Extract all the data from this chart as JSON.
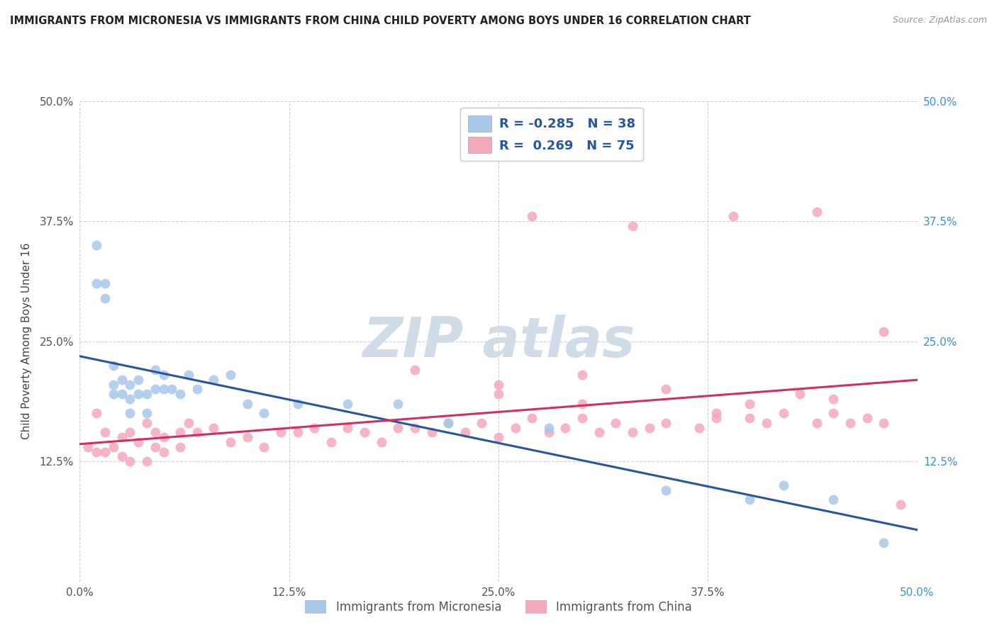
{
  "title": "IMMIGRANTS FROM MICRONESIA VS IMMIGRANTS FROM CHINA CHILD POVERTY AMONG BOYS UNDER 16 CORRELATION CHART",
  "source": "Source: ZipAtlas.com",
  "ylabel": "Child Poverty Among Boys Under 16",
  "xlim": [
    0.0,
    0.5
  ],
  "ylim": [
    0.0,
    0.5
  ],
  "xtick_labels": [
    "0.0%",
    "12.5%",
    "25.0%",
    "37.5%",
    "50.0%"
  ],
  "xtick_vals": [
    0.0,
    0.125,
    0.25,
    0.375,
    0.5
  ],
  "ytick_labels": [
    "12.5%",
    "25.0%",
    "37.5%",
    "50.0%"
  ],
  "ytick_vals": [
    0.125,
    0.25,
    0.375,
    0.5
  ],
  "legend_label1": "Immigrants from Micronesia",
  "legend_label2": "Immigrants from China",
  "R1": -0.285,
  "N1": 38,
  "R2": 0.269,
  "N2": 75,
  "color1": "#A8C8EA",
  "color2": "#F4A8BC",
  "line_color1": "#2855A0",
  "line_color2": "#D03060",
  "watermark_color": "#D0DCE8",
  "micronesia_x": [
    0.01,
    0.01,
    0.015,
    0.015,
    0.02,
    0.02,
    0.02,
    0.025,
    0.025,
    0.03,
    0.03,
    0.03,
    0.035,
    0.035,
    0.04,
    0.04,
    0.045,
    0.045,
    0.05,
    0.05,
    0.055,
    0.06,
    0.065,
    0.07,
    0.08,
    0.09,
    0.1,
    0.11,
    0.13,
    0.16,
    0.19,
    0.22,
    0.28,
    0.35,
    0.4,
    0.42,
    0.45,
    0.48
  ],
  "micronesia_y": [
    0.31,
    0.35,
    0.295,
    0.31,
    0.205,
    0.225,
    0.195,
    0.21,
    0.195,
    0.205,
    0.19,
    0.175,
    0.21,
    0.195,
    0.195,
    0.175,
    0.22,
    0.2,
    0.215,
    0.2,
    0.2,
    0.195,
    0.215,
    0.2,
    0.21,
    0.215,
    0.185,
    0.175,
    0.185,
    0.185,
    0.185,
    0.165,
    0.16,
    0.095,
    0.085,
    0.1,
    0.085,
    0.04
  ],
  "china_x": [
    0.005,
    0.01,
    0.01,
    0.015,
    0.015,
    0.02,
    0.025,
    0.025,
    0.03,
    0.03,
    0.035,
    0.04,
    0.04,
    0.045,
    0.045,
    0.05,
    0.05,
    0.06,
    0.06,
    0.065,
    0.07,
    0.08,
    0.09,
    0.1,
    0.11,
    0.12,
    0.13,
    0.14,
    0.15,
    0.16,
    0.17,
    0.18,
    0.19,
    0.2,
    0.21,
    0.22,
    0.23,
    0.24,
    0.25,
    0.26,
    0.27,
    0.28,
    0.29,
    0.3,
    0.31,
    0.32,
    0.33,
    0.34,
    0.35,
    0.37,
    0.38,
    0.4,
    0.41,
    0.42,
    0.44,
    0.45,
    0.46,
    0.47,
    0.48,
    0.25,
    0.3,
    0.35,
    0.4,
    0.43,
    0.2,
    0.25,
    0.3,
    0.38,
    0.45,
    0.48,
    0.27,
    0.33,
    0.39,
    0.44,
    0.49
  ],
  "china_y": [
    0.14,
    0.135,
    0.175,
    0.135,
    0.155,
    0.14,
    0.13,
    0.15,
    0.125,
    0.155,
    0.145,
    0.125,
    0.165,
    0.14,
    0.155,
    0.135,
    0.15,
    0.14,
    0.155,
    0.165,
    0.155,
    0.16,
    0.145,
    0.15,
    0.14,
    0.155,
    0.155,
    0.16,
    0.145,
    0.16,
    0.155,
    0.145,
    0.16,
    0.16,
    0.155,
    0.165,
    0.155,
    0.165,
    0.15,
    0.16,
    0.17,
    0.155,
    0.16,
    0.17,
    0.155,
    0.165,
    0.155,
    0.16,
    0.165,
    0.16,
    0.175,
    0.17,
    0.165,
    0.175,
    0.165,
    0.175,
    0.165,
    0.17,
    0.165,
    0.205,
    0.215,
    0.2,
    0.185,
    0.195,
    0.22,
    0.195,
    0.185,
    0.17,
    0.19,
    0.26,
    0.38,
    0.37,
    0.38,
    0.385,
    0.08
  ]
}
